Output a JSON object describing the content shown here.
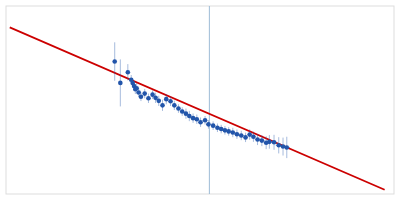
{
  "chart_data": {
    "type": "scatter",
    "tick_labels": false,
    "xlim": [
      -0.52,
      1.55
    ],
    "ylim": [
      0.1,
      0.98
    ],
    "vline": 0.565,
    "series": [
      {
        "type": "scatter",
        "color": "#2255aa",
        "x": [
          0.06,
          0.09,
          0.13,
          0.148,
          0.156,
          0.163,
          0.17,
          0.177,
          0.188,
          0.2,
          0.22,
          0.24,
          0.262,
          0.278,
          0.295,
          0.315,
          0.335,
          0.358,
          0.378,
          0.4,
          0.42,
          0.44,
          0.458,
          0.478,
          0.498,
          0.518,
          0.542,
          0.56,
          0.585,
          0.608,
          0.628,
          0.648,
          0.668,
          0.69,
          0.712,
          0.735,
          0.758,
          0.78,
          0.8,
          0.822,
          0.845,
          0.868,
          0.885,
          0.91,
          0.935,
          0.958,
          0.978
        ],
        "values": [
          0.72,
          0.62,
          0.67,
          0.635,
          0.62,
          0.605,
          0.59,
          0.595,
          0.575,
          0.555,
          0.57,
          0.548,
          0.565,
          0.55,
          0.536,
          0.515,
          0.544,
          0.534,
          0.515,
          0.5,
          0.486,
          0.476,
          0.465,
          0.455,
          0.45,
          0.436,
          0.445,
          0.426,
          0.42,
          0.41,
          0.404,
          0.398,
          0.393,
          0.388,
          0.38,
          0.374,
          0.365,
          0.378,
          0.368,
          0.355,
          0.35,
          0.34,
          0.344,
          0.342,
          0.328,
          0.322,
          0.318
        ],
        "y_errors": [
          0.09,
          0.11,
          0.038,
          0.022,
          0.018,
          0.018,
          0.022,
          0.025,
          0.022,
          0.02,
          0.022,
          0.022,
          0.02,
          0.024,
          0.024,
          0.026,
          0.024,
          0.022,
          0.022,
          0.02,
          0.02,
          0.024,
          0.024,
          0.022,
          0.022,
          0.022,
          0.02,
          0.02,
          0.02,
          0.02,
          0.02,
          0.02,
          0.02,
          0.022,
          0.022,
          0.022,
          0.022,
          0.024,
          0.024,
          0.026,
          0.026,
          0.03,
          0.032,
          0.035,
          0.038,
          0.042,
          0.05
        ],
        "x_errors": [
          0.01,
          0.01,
          0.009,
          0.009,
          0.009,
          0.009,
          0.009,
          0.009,
          0.009,
          0.009,
          0.01,
          0.01,
          0.01,
          0.01,
          0.01,
          0.01,
          0.01,
          0.011,
          0.011,
          0.011,
          0.011,
          0.011,
          0.011,
          0.012,
          0.012,
          0.012,
          0.012,
          0.012,
          0.013,
          0.013,
          0.013,
          0.013,
          0.013,
          0.014,
          0.014,
          0.014,
          0.014,
          0.014,
          0.015,
          0.015,
          0.015,
          0.015,
          0.016,
          0.016,
          0.016,
          0.017,
          0.017
        ]
      },
      {
        "type": "line",
        "color": "#cc0000",
        "x": [
          -0.5,
          1.5
        ],
        "values": [
          0.88,
          0.12
        ]
      }
    ]
  }
}
